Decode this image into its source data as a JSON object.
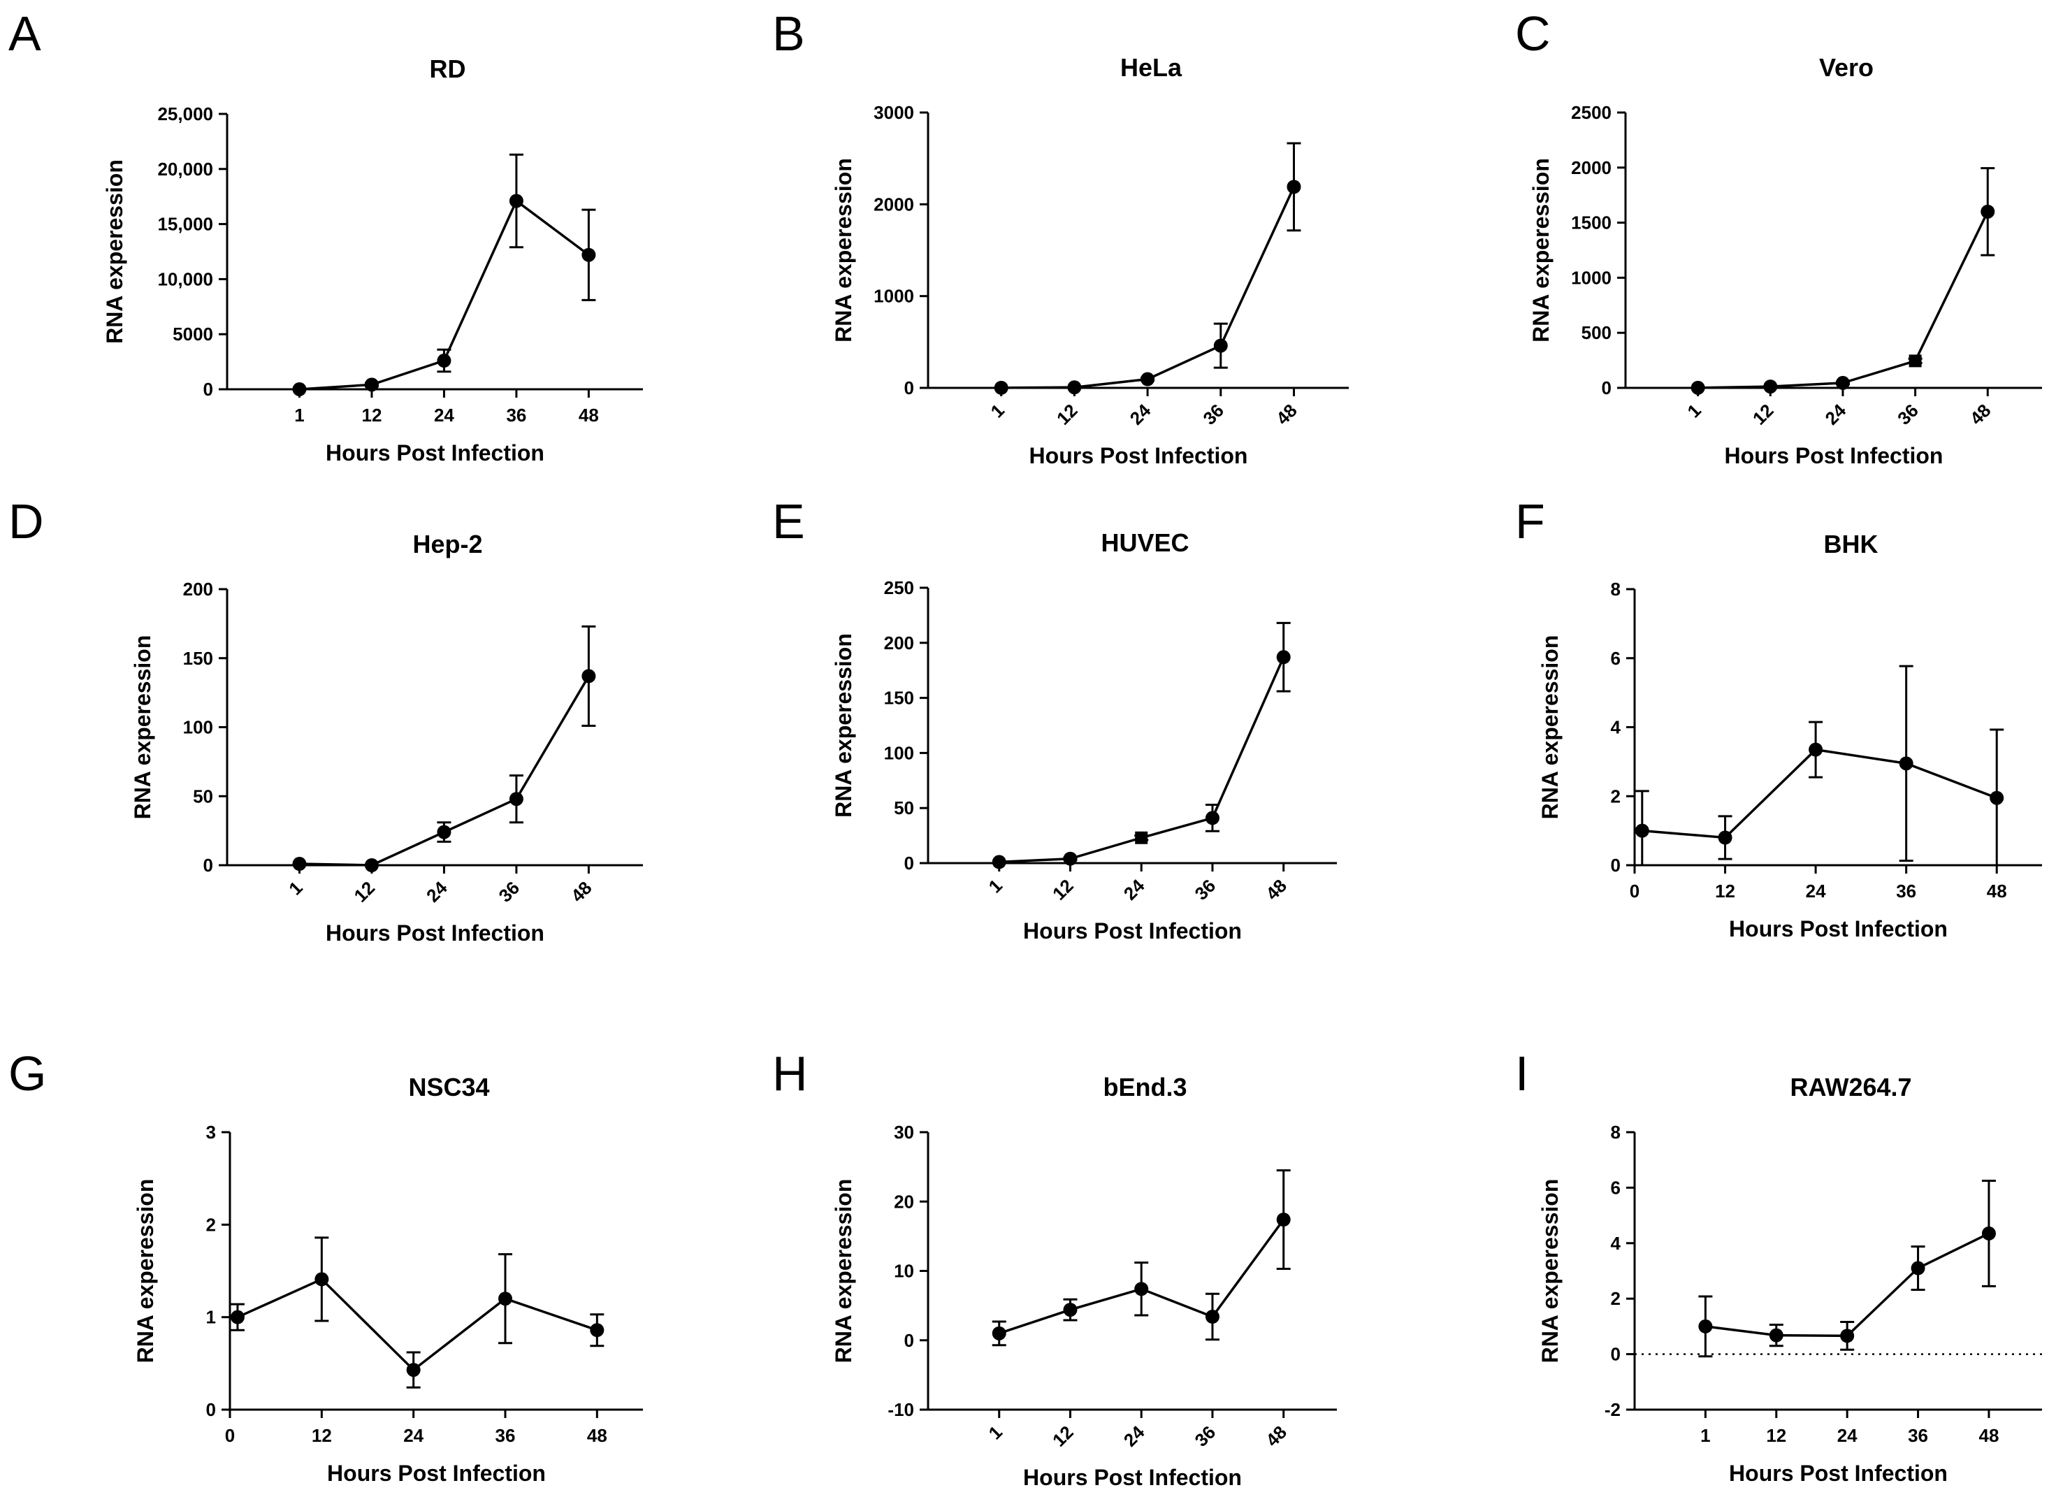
{
  "figure": {
    "panel_count": 9
  },
  "chart_data": [
    {
      "panel": "A",
      "type": "line",
      "title": "RD",
      "xlabel": "Hours Post Infection",
      "ylabel": "RNA experession",
      "x_scale": "category",
      "x_ticks": [
        "1",
        "12",
        "24",
        "36",
        "48"
      ],
      "x_tick_rotated": false,
      "x": [
        1,
        12,
        24,
        36,
        48
      ],
      "values": [
        1,
        420,
        2600,
        17100,
        12200
      ],
      "errors": [
        0,
        150,
        1000,
        4200,
        4100
      ],
      "markers": [
        "circle",
        "circle",
        "circle",
        "circle",
        "circle"
      ],
      "ylim": [
        0,
        25000
      ],
      "y_ticks": [
        0,
        5000,
        10000,
        15000,
        20000,
        25000
      ],
      "y_tick_labels": [
        "0",
        "5000",
        "10,000",
        "15,000",
        "20,000",
        "25,000"
      ],
      "ref_line": null
    },
    {
      "panel": "B",
      "type": "line",
      "title": "HeLa",
      "xlabel": "Hours Post Infection",
      "ylabel": "RNA experession",
      "x_scale": "category",
      "x_ticks": [
        "1",
        "12",
        "24",
        "36",
        "48"
      ],
      "x_tick_rotated": true,
      "x": [
        1,
        12,
        24,
        36,
        48
      ],
      "values": [
        1,
        6,
        95,
        460,
        2190
      ],
      "errors": [
        0,
        3,
        15,
        240,
        475
      ],
      "markers": [
        "circle",
        "circle",
        "circle",
        "circle",
        "circle"
      ],
      "ylim": [
        0,
        3000
      ],
      "y_ticks": [
        0,
        1000,
        2000,
        3000
      ],
      "y_tick_labels": [
        "0",
        "1000",
        "2000",
        "3000"
      ],
      "ref_line": null
    },
    {
      "panel": "C",
      "type": "line",
      "title": "Vero",
      "xlabel": "Hours Post Infection",
      "ylabel": "RNA experession",
      "x_scale": "category",
      "x_ticks": [
        "1",
        "12",
        "24",
        "36",
        "48"
      ],
      "x_tick_rotated": true,
      "x": [
        1,
        12,
        24,
        36,
        48
      ],
      "values": [
        1,
        12,
        45,
        245,
        1600
      ],
      "errors": [
        0,
        4,
        10,
        20,
        395
      ],
      "markers": [
        "circle",
        "circle",
        "circle",
        "square",
        "circle"
      ],
      "ylim": [
        0,
        2500
      ],
      "y_ticks": [
        0,
        500,
        1000,
        1500,
        2000,
        2500
      ],
      "y_tick_labels": [
        "0",
        "500",
        "1000",
        "1500",
        "2000",
        "2500"
      ],
      "ref_line": null
    },
    {
      "panel": "D",
      "type": "line",
      "title": "Hep-2",
      "xlabel": "Hours Post Infection",
      "ylabel": "RNA experession",
      "x_scale": "category",
      "x_ticks": [
        "1",
        "12",
        "24",
        "36",
        "48"
      ],
      "x_tick_rotated": true,
      "x": [
        1,
        12,
        24,
        36,
        48
      ],
      "values": [
        1,
        0,
        24,
        48,
        137
      ],
      "errors": [
        0,
        0,
        7,
        17,
        36
      ],
      "markers": [
        "circle",
        "circle",
        "circle",
        "circle",
        "circle"
      ],
      "ylim": [
        0,
        200
      ],
      "y_ticks": [
        0,
        50,
        100,
        150,
        200
      ],
      "y_tick_labels": [
        "0",
        "50",
        "100",
        "150",
        "200"
      ],
      "ref_line": null
    },
    {
      "panel": "E",
      "type": "line",
      "title": "HUVEC",
      "xlabel": "Hours Post Infection",
      "ylabel": "RNA experession",
      "x_scale": "category",
      "x_ticks": [
        "1",
        "12",
        "24",
        "36",
        "48"
      ],
      "x_tick_rotated": true,
      "x": [
        1,
        12,
        24,
        36,
        48
      ],
      "values": [
        1,
        4,
        23,
        41,
        187
      ],
      "errors": [
        0,
        1,
        2,
        12,
        31
      ],
      "markers": [
        "circle",
        "circle",
        "square",
        "circle",
        "circle"
      ],
      "ylim": [
        0,
        250
      ],
      "y_ticks": [
        0,
        50,
        100,
        150,
        200,
        250
      ],
      "y_tick_labels": [
        "0",
        "50",
        "100",
        "150",
        "200",
        "250"
      ],
      "ref_line": null
    },
    {
      "panel": "F",
      "type": "line",
      "title": "BHK",
      "xlabel": "Hours Post Infection",
      "ylabel": "RNA experession",
      "x_scale": "linear",
      "x_ticks": [
        "0",
        "12",
        "24",
        "36",
        "48"
      ],
      "x_tick_rotated": false,
      "xlim": [
        0,
        54
      ],
      "x": [
        1,
        12,
        24,
        36,
        48
      ],
      "values": [
        1.0,
        0.8,
        3.35,
        2.95,
        1.95
      ],
      "errors": [
        1.15,
        0.62,
        0.8,
        2.82,
        1.98
      ],
      "markers": [
        "circle",
        "circle",
        "circle",
        "circle",
        "circle"
      ],
      "ylim": [
        0,
        8
      ],
      "y_ticks": [
        0,
        2,
        4,
        6,
        8
      ],
      "y_tick_labels": [
        "0",
        "2",
        "4",
        "6",
        "8"
      ],
      "ref_line": null
    },
    {
      "panel": "G",
      "type": "line",
      "title": "NSC34",
      "xlabel": "Hours Post Infection",
      "ylabel": "RNA experession",
      "x_scale": "linear",
      "x_ticks": [
        "0",
        "12",
        "24",
        "36",
        "48"
      ],
      "x_tick_rotated": false,
      "xlim": [
        0,
        54
      ],
      "x": [
        1,
        12,
        24,
        36,
        48
      ],
      "values": [
        1.0,
        1.41,
        0.43,
        1.2,
        0.86
      ],
      "errors": [
        0.14,
        0.45,
        0.19,
        0.48,
        0.17
      ],
      "markers": [
        "circle",
        "circle",
        "circle",
        "circle",
        "circle"
      ],
      "ylim": [
        0,
        3
      ],
      "y_ticks": [
        0,
        1,
        2,
        3
      ],
      "y_tick_labels": [
        "0",
        "1",
        "2",
        "3"
      ],
      "ref_line": null
    },
    {
      "panel": "H",
      "type": "line",
      "title": "bEnd.3",
      "xlabel": "Hours Post Infection",
      "ylabel": "RNA experession",
      "x_scale": "category",
      "x_ticks": [
        "1",
        "12",
        "24",
        "36",
        "48"
      ],
      "x_tick_rotated": true,
      "x": [
        1,
        12,
        24,
        36,
        48
      ],
      "values": [
        1,
        4.4,
        7.4,
        3.4,
        17.4
      ],
      "errors": [
        1.7,
        1.5,
        3.8,
        3.3,
        7.1
      ],
      "markers": [
        "circle",
        "circle",
        "circle",
        "circle",
        "circle"
      ],
      "ylim": [
        -10,
        30
      ],
      "y_ticks": [
        -10,
        0,
        10,
        20,
        30
      ],
      "y_tick_labels": [
        "-10",
        "0",
        "10",
        "20",
        "30"
      ],
      "ref_line": null
    },
    {
      "panel": "I",
      "type": "line",
      "title": "RAW264.7",
      "xlabel": "Hours Post Infection",
      "ylabel": "RNA experession",
      "x_scale": "category",
      "x_ticks": [
        "1",
        "12",
        "24",
        "36",
        "48"
      ],
      "x_tick_rotated": false,
      "x": [
        1,
        12,
        24,
        36,
        48
      ],
      "values": [
        1.0,
        0.68,
        0.66,
        3.1,
        4.35
      ],
      "errors": [
        1.08,
        0.38,
        0.5,
        0.78,
        1.9
      ],
      "markers": [
        "circle",
        "circle",
        "circle",
        "circle",
        "circle"
      ],
      "ylim": [
        -2,
        8
      ],
      "y_ticks": [
        -2,
        0,
        2,
        4,
        6,
        8
      ],
      "y_tick_labels": [
        "-2",
        "0",
        "2",
        "4",
        "6",
        "8"
      ],
      "ref_line": 0
    }
  ]
}
